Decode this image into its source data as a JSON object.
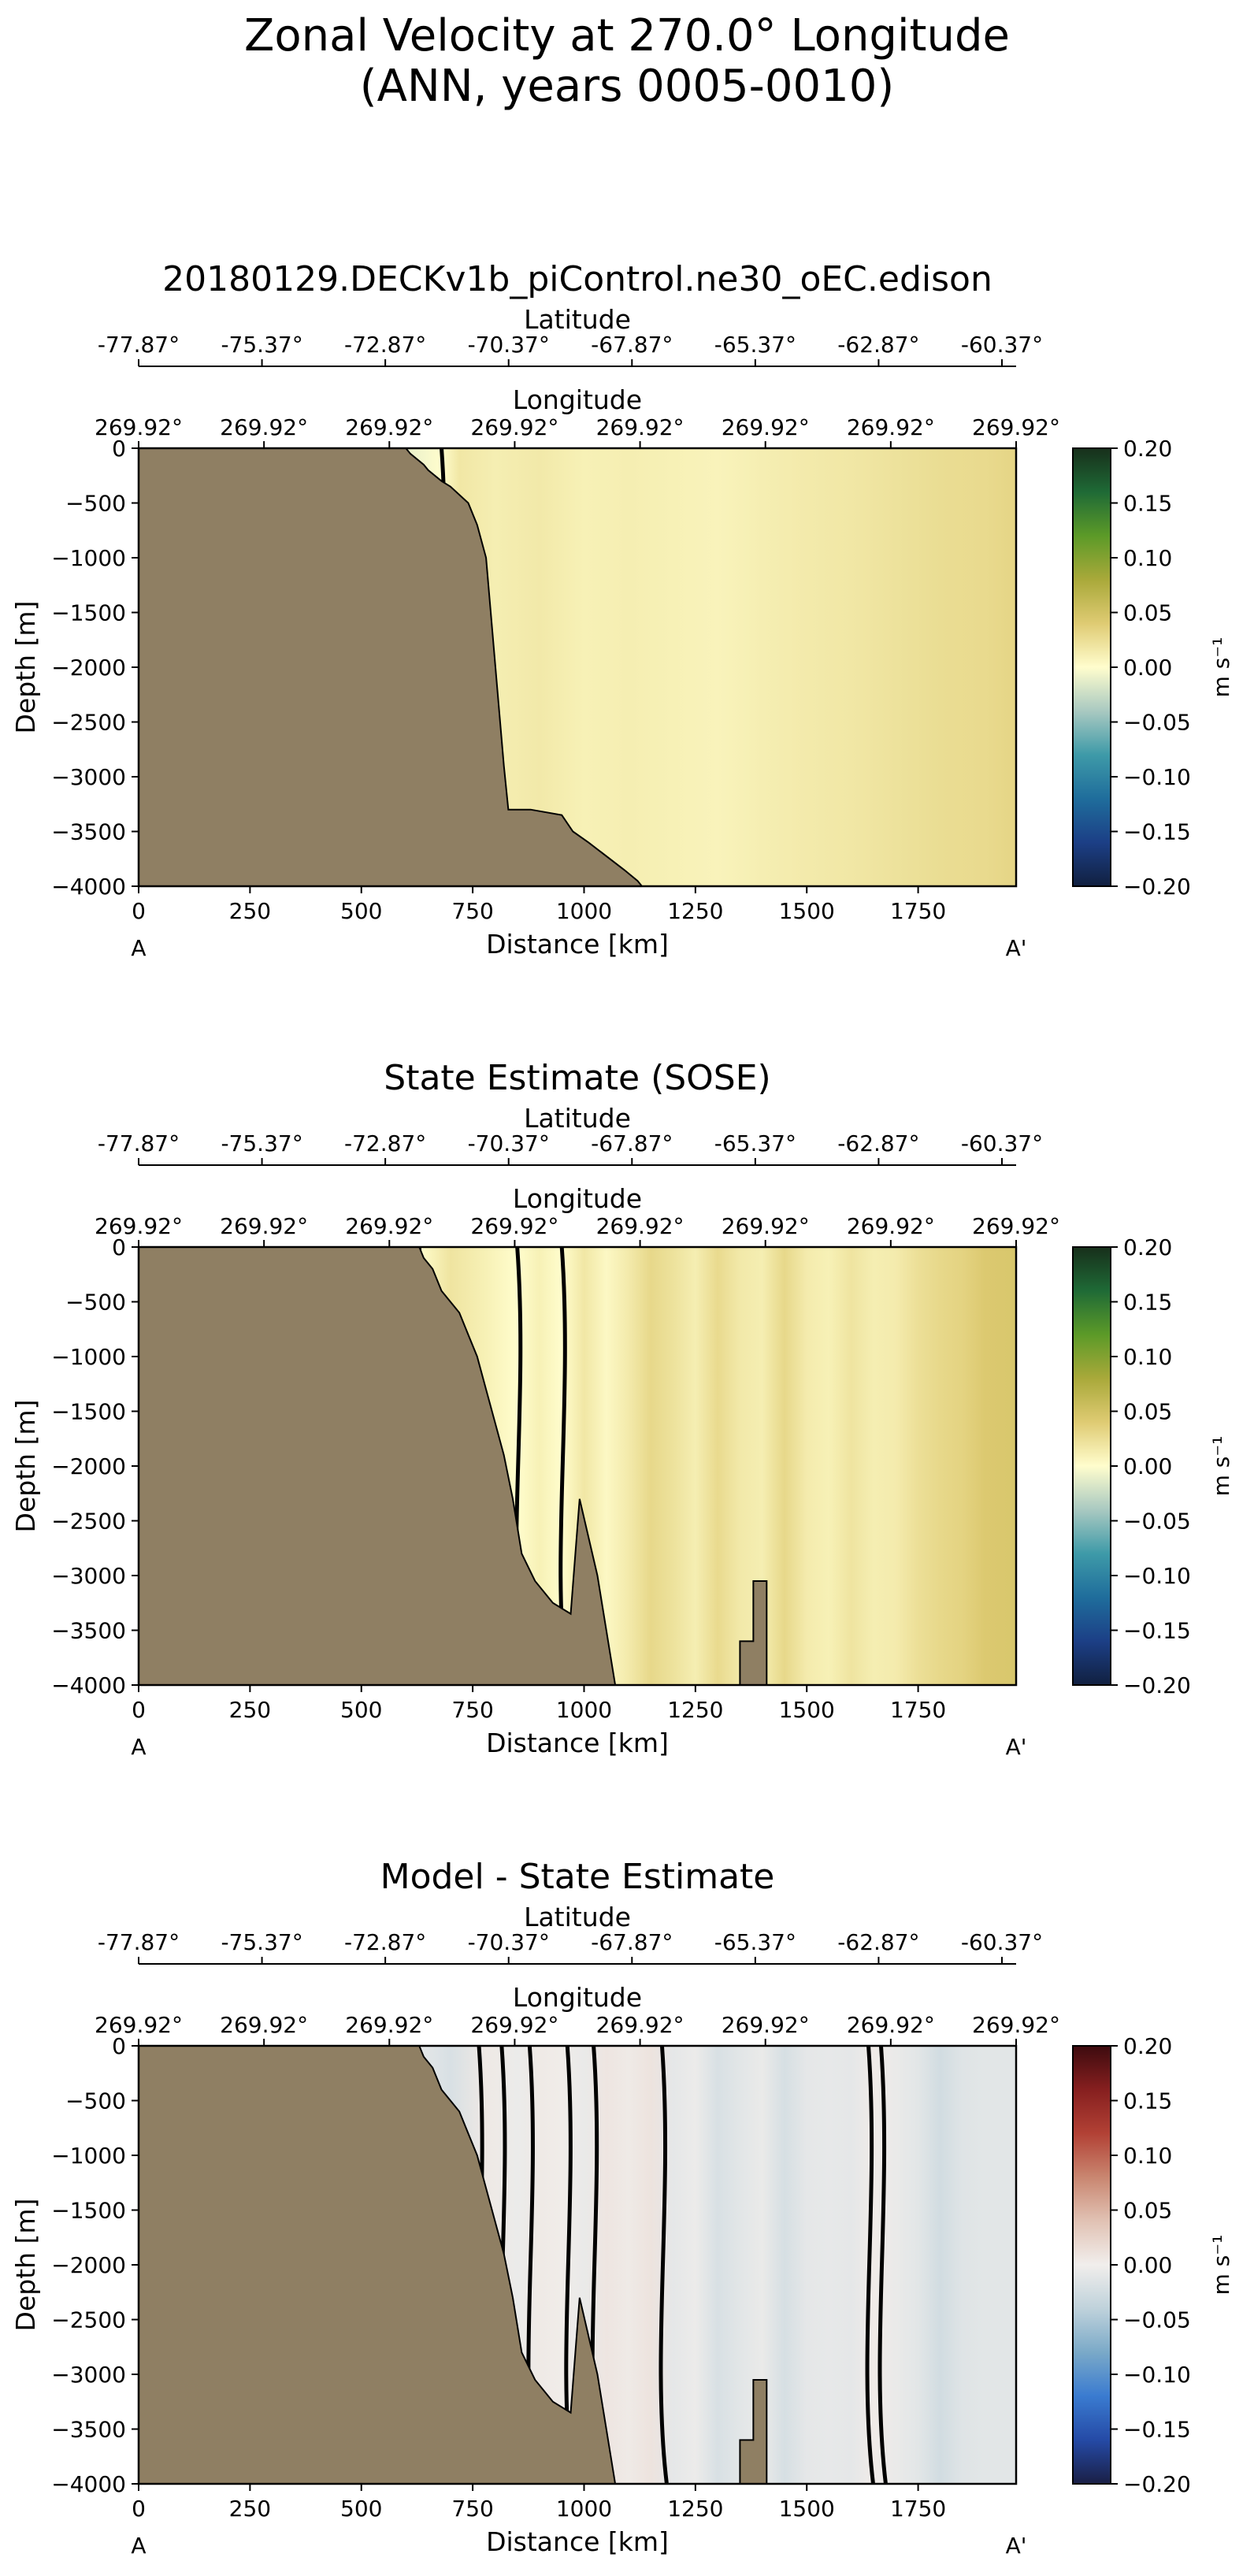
{
  "figure": {
    "title_line1": "Zonal Velocity at 270.0° Longitude",
    "title_line2": "(ANN, years 0005-0010)"
  },
  "chart_data": [
    {
      "type": "heatmap",
      "title": "20180129.DECKv1b_piControl.ne30_oEC.edison",
      "xlabel": "Distance [km]",
      "ylabel": "Depth [m]",
      "xlim": [
        0,
        1970
      ],
      "ylim": [
        -4000,
        0
      ],
      "xticks": [
        0,
        250,
        500,
        750,
        1000,
        1250,
        1500,
        1750
      ],
      "yticks": [
        0,
        -500,
        -1000,
        -1500,
        -2000,
        -2500,
        -3000,
        -3500,
        -4000
      ],
      "section_start_label": "A",
      "section_end_label": "A'",
      "latitude_axis": {
        "label": "Latitude",
        "ticks": [
          "-77.87°",
          "-75.37°",
          "-72.87°",
          "-70.37°",
          "-67.87°",
          "-65.37°",
          "-62.87°",
          "-60.37°"
        ]
      },
      "longitude_axis": {
        "label": "Longitude",
        "ticks": [
          "269.92°",
          "269.92°",
          "269.92°",
          "269.92°",
          "269.92°",
          "269.92°",
          "269.92°",
          "269.92°"
        ]
      },
      "colorbar": {
        "label": "m s⁻¹",
        "range": [
          -0.2,
          0.2
        ],
        "ticks": [
          "0.20",
          "0.15",
          "0.10",
          "0.05",
          "0.00",
          "−0.05",
          "−0.10",
          "−0.15",
          "−0.20"
        ],
        "colormap": "delta"
      },
      "contour_levels": [
        0.0
      ],
      "land_color": "#8f7f63",
      "bathymetry": {
        "x": [
          0,
          600,
          610,
          640,
          650,
          680,
          700,
          740,
          760,
          780,
          820,
          830,
          880,
          950,
          975,
          1010,
          1090,
          1120,
          1130
        ],
        "depth": [
          0,
          0,
          -50,
          -150,
          -200,
          -300,
          -350,
          -500,
          -700,
          -1000,
          -2900,
          -3300,
          -3300,
          -3350,
          -3500,
          -3600,
          -3850,
          -3950,
          -4000
        ]
      },
      "velocity_profile": {
        "x": [
          600,
          680,
          720,
          800,
          900,
          1000,
          1100,
          1200,
          1300,
          1400,
          1500,
          1600,
          1700,
          1800,
          1900,
          1970
        ],
        "value": [
          -0.01,
          0.0,
          0.018,
          0.012,
          0.016,
          0.01,
          0.012,
          0.01,
          0.008,
          0.012,
          0.015,
          0.018,
          0.022,
          0.026,
          0.028,
          0.032
        ]
      }
    },
    {
      "type": "heatmap",
      "title": "State Estimate (SOSE)",
      "xlabel": "Distance [km]",
      "ylabel": "Depth [m]",
      "xlim": [
        0,
        1970
      ],
      "ylim": [
        -4000,
        0
      ],
      "xticks": [
        0,
        250,
        500,
        750,
        1000,
        1250,
        1500,
        1750
      ],
      "yticks": [
        0,
        -500,
        -1000,
        -1500,
        -2000,
        -2500,
        -3000,
        -3500,
        -4000
      ],
      "section_start_label": "A",
      "section_end_label": "A'",
      "latitude_axis": {
        "label": "Latitude",
        "ticks": [
          "-77.87°",
          "-75.37°",
          "-72.87°",
          "-70.37°",
          "-67.87°",
          "-65.37°",
          "-62.87°",
          "-60.37°"
        ]
      },
      "longitude_axis": {
        "label": "Longitude",
        "ticks": [
          "269.92°",
          "269.92°",
          "269.92°",
          "269.92°",
          "269.92°",
          "269.92°",
          "269.92°",
          "269.92°"
        ]
      },
      "colorbar": {
        "label": "m s⁻¹",
        "range": [
          -0.2,
          0.2
        ],
        "ticks": [
          "0.20",
          "0.15",
          "0.10",
          "0.05",
          "0.00",
          "−0.05",
          "−0.10",
          "−0.15",
          "−0.20"
        ],
        "colormap": "delta"
      },
      "contour_levels": [
        0.0
      ],
      "land_color": "#8f7f63",
      "bathymetry": {
        "x": [
          0,
          630,
          640,
          660,
          680,
          700,
          720,
          740,
          760,
          780,
          800,
          820,
          840,
          860,
          890,
          930,
          970,
          990,
          1030,
          1070,
          1070,
          1350,
          1350,
          1380,
          1380,
          1410,
          1410,
          1970
        ],
        "depth": [
          0,
          0,
          -100,
          -200,
          -400,
          -500,
          -600,
          -800,
          -1000,
          -1300,
          -1600,
          -1900,
          -2300,
          -2800,
          -3050,
          -3250,
          -3350,
          -2300,
          -3000,
          -4000,
          -4000,
          -4000,
          -3600,
          -3600,
          -3050,
          -3050,
          -4000,
          -4000
        ]
      },
      "velocity_profile": {
        "x": [
          630,
          700,
          780,
          850,
          900,
          950,
          1000,
          1050,
          1100,
          1150,
          1200,
          1250,
          1300,
          1350,
          1400,
          1450,
          1500,
          1550,
          1600,
          1650,
          1700,
          1750,
          1800,
          1850,
          1900,
          1970
        ],
        "value": [
          0.0,
          0.02,
          0.01,
          0.0,
          0.01,
          0.0,
          0.018,
          0.004,
          0.015,
          0.03,
          0.022,
          0.012,
          0.028,
          0.016,
          0.012,
          0.03,
          0.014,
          0.01,
          0.02,
          0.012,
          0.014,
          0.024,
          0.03,
          0.034,
          0.042,
          0.045
        ]
      }
    },
    {
      "type": "heatmap",
      "title": "Model - State Estimate",
      "xlabel": "Distance [km]",
      "ylabel": "Depth [m]",
      "xlim": [
        0,
        1970
      ],
      "ylim": [
        -4000,
        0
      ],
      "xticks": [
        0,
        250,
        500,
        750,
        1000,
        1250,
        1500,
        1750
      ],
      "yticks": [
        0,
        -500,
        -1000,
        -1500,
        -2000,
        -2500,
        -3000,
        -3500,
        -4000
      ],
      "section_start_label": "A",
      "section_end_label": "A'",
      "latitude_axis": {
        "label": "Latitude",
        "ticks": [
          "-77.87°",
          "-75.37°",
          "-72.87°",
          "-70.37°",
          "-67.87°",
          "-65.37°",
          "-62.87°",
          "-60.37°"
        ]
      },
      "longitude_axis": {
        "label": "Longitude",
        "ticks": [
          "269.92°",
          "269.92°",
          "269.92°",
          "269.92°",
          "269.92°",
          "269.92°",
          "269.92°",
          "269.92°"
        ]
      },
      "colorbar": {
        "label": "m s⁻¹",
        "range": [
          -0.2,
          0.2
        ],
        "ticks": [
          "0.20",
          "0.15",
          "0.10",
          "0.05",
          "0.00",
          "−0.05",
          "−0.10",
          "−0.15",
          "−0.20"
        ],
        "colormap": "balance"
      },
      "contour_levels": [
        0.0
      ],
      "land_color": "#8f7f63",
      "bathymetry": {
        "x": [
          0,
          630,
          640,
          660,
          680,
          700,
          720,
          740,
          760,
          780,
          800,
          820,
          840,
          860,
          890,
          930,
          970,
          990,
          1030,
          1070,
          1070,
          1350,
          1350,
          1380,
          1380,
          1410,
          1410,
          1970
        ],
        "depth": [
          0,
          0,
          -100,
          -200,
          -400,
          -500,
          -600,
          -800,
          -1000,
          -1300,
          -1600,
          -1900,
          -2300,
          -2800,
          -3050,
          -3250,
          -3350,
          -2300,
          -3000,
          -4000,
          -4000,
          -4000,
          -3600,
          -3600,
          -3050,
          -3050,
          -4000,
          -4000
        ]
      },
      "velocity_profile": {
        "x": [
          630,
          700,
          780,
          850,
          900,
          950,
          1000,
          1050,
          1100,
          1150,
          1200,
          1250,
          1300,
          1350,
          1400,
          1450,
          1500,
          1550,
          1600,
          1650,
          1700,
          1750,
          1800,
          1850,
          1900,
          1970
        ],
        "value": [
          -0.01,
          -0.02,
          0.005,
          -0.005,
          0.004,
          0.002,
          -0.006,
          0.008,
          0.004,
          0.01,
          -0.01,
          -0.004,
          -0.02,
          -0.012,
          -0.006,
          -0.022,
          -0.01,
          -0.008,
          -0.01,
          0.003,
          -0.006,
          -0.012,
          -0.026,
          -0.014,
          -0.012,
          -0.012
        ]
      }
    }
  ]
}
